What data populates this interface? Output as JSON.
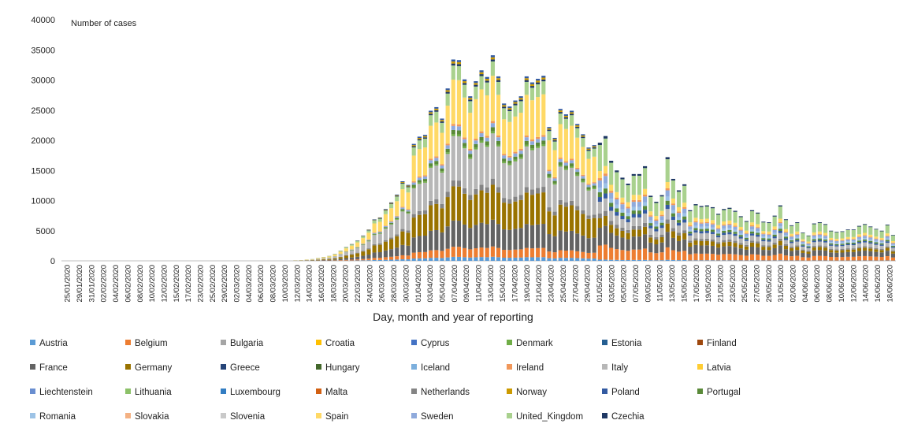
{
  "chart_data": {
    "type": "bar",
    "stacked": true,
    "ylabel": "Number of cases",
    "xlabel": "Day, month and year of reporting",
    "ylim": [
      0,
      40000
    ],
    "yticks": [
      0,
      5000,
      10000,
      15000,
      20000,
      25000,
      30000,
      35000,
      40000
    ],
    "x_start": "25/01/2020",
    "x_end": "19/06/2020",
    "x_tick_every_days": 2,
    "x_tick_labels": [
      "25/01/2020",
      "29/01/2020",
      "31/01/2020",
      "02/02/2020",
      "04/02/2020",
      "06/02/2020",
      "08/02/2020",
      "10/02/2020",
      "12/02/2020",
      "15/02/2020",
      "17/02/2020",
      "23/02/2020",
      "25/02/2020",
      "29/02/2020",
      "02/03/2020",
      "04/03/2020",
      "06/03/2020",
      "08/03/2020",
      "10/03/2020",
      "12/03/2020",
      "14/03/2020",
      "16/03/2020",
      "18/03/2020",
      "20/03/2020",
      "22/03/2020",
      "24/03/2020",
      "26/03/2020",
      "28/03/2020",
      "30/03/2020",
      "01/04/2020",
      "03/04/2020",
      "05/04/2020",
      "07/04/2020",
      "09/04/2020",
      "11/04/2020",
      "13/04/2020",
      "15/04/2020",
      "17/04/2020",
      "19/04/2020",
      "21/04/2020",
      "23/04/2020",
      "25/04/2020",
      "27/04/2020",
      "29/04/2020",
      "01/05/2020",
      "03/05/2020",
      "05/05/2020",
      "07/05/2020",
      "09/05/2020",
      "11/05/2020",
      "13/05/2020",
      "15/05/2020",
      "17/05/2020",
      "19/05/2020",
      "21/05/2020",
      "23/05/2020",
      "25/05/2020",
      "27/05/2020",
      "29/05/2020",
      "31/05/2020",
      "02/06/2020",
      "04/06/2020",
      "06/06/2020",
      "08/06/2020",
      "10/06/2020",
      "12/06/2020",
      "14/06/2020",
      "16/06/2020",
      "18/06/2020"
    ],
    "totals": [
      0,
      0,
      0,
      0,
      0,
      0,
      0,
      0,
      0,
      0,
      0,
      0,
      0,
      0,
      0,
      0,
      0,
      0,
      0,
      0,
      0,
      0,
      0,
      0,
      0,
      0,
      0,
      0,
      0,
      0,
      0,
      0,
      0,
      0,
      0,
      0,
      0,
      0,
      0,
      0,
      0,
      80,
      120,
      220,
      300,
      480,
      650,
      820,
      1150,
      1700,
      2300,
      2800,
      3400,
      4200,
      5200,
      6900,
      7200,
      8600,
      9700,
      11000,
      13200,
      12600,
      19400,
      20600,
      20900,
      24900,
      25500,
      23600,
      28600,
      33400,
      33300,
      30100,
      27300,
      29800,
      31600,
      30500,
      34100,
      30600,
      26100,
      25600,
      26600,
      27300,
      30600,
      29600,
      30200,
      30700,
      22200,
      20400,
      25200,
      24300,
      24900,
      22700,
      21000,
      18800,
      19200,
      19600,
      20700,
      16600,
      15000,
      13800,
      12800,
      14400,
      14400,
      15700,
      10800,
      9800,
      10900,
      17200,
      13600,
      11700,
      12700,
      8400,
      9400,
      9100,
      9200,
      8900,
      7800,
      8600,
      8800,
      8300,
      7400,
      6600,
      8400,
      8000,
      6500,
      6400,
      7500,
      9200,
      6900,
      5900,
      6400,
      4700,
      4200,
      6200,
      6400,
      6100,
      5000,
      4800,
      4900,
      5200,
      5200,
      5800,
      6100,
      5700,
      5300,
      5000,
      6000,
      4300
    ]
  },
  "legend_columns": 8,
  "legend": [
    {
      "name": "Austria",
      "color": "#5b9bd5"
    },
    {
      "name": "Belgium",
      "color": "#ed7d31"
    },
    {
      "name": "Bulgaria",
      "color": "#a5a5a5"
    },
    {
      "name": "Croatia",
      "color": "#ffc000"
    },
    {
      "name": "Cyprus",
      "color": "#4472c4"
    },
    {
      "name": "Denmark",
      "color": "#70ad47"
    },
    {
      "name": "Estonia",
      "color": "#255e91"
    },
    {
      "name": "Finland",
      "color": "#9e480e"
    },
    {
      "name": "France",
      "color": "#636363"
    },
    {
      "name": "Germany",
      "color": "#997300"
    },
    {
      "name": "Greece",
      "color": "#264478"
    },
    {
      "name": "Hungary",
      "color": "#43682b"
    },
    {
      "name": "Iceland",
      "color": "#7cafdd"
    },
    {
      "name": "Ireland",
      "color": "#f1975a"
    },
    {
      "name": "Italy",
      "color": "#b7b7b7"
    },
    {
      "name": "Latvia",
      "color": "#ffcd33"
    },
    {
      "name": "Liechtenstein",
      "color": "#698ed0"
    },
    {
      "name": "Lithuania",
      "color": "#8cc168"
    },
    {
      "name": "Luxembourg",
      "color": "#327dc2"
    },
    {
      "name": "Malta",
      "color": "#d26012"
    },
    {
      "name": "Netherlands",
      "color": "#848484"
    },
    {
      "name": "Norway",
      "color": "#cc9a00"
    },
    {
      "name": "Poland",
      "color": "#335aa1"
    },
    {
      "name": "Portugal",
      "color": "#5a8a39"
    },
    {
      "name": "Romania",
      "color": "#9dc3e6"
    },
    {
      "name": "Slovakia",
      "color": "#f4b183"
    },
    {
      "name": "Slovenia",
      "color": "#c9c9c9"
    },
    {
      "name": "Spain",
      "color": "#ffd966"
    },
    {
      "name": "Sweden",
      "color": "#8faadc"
    },
    {
      "name": "United_Kingdom",
      "color": "#a9d18e"
    },
    {
      "name": "Czechia",
      "color": "#1f3864"
    }
  ]
}
